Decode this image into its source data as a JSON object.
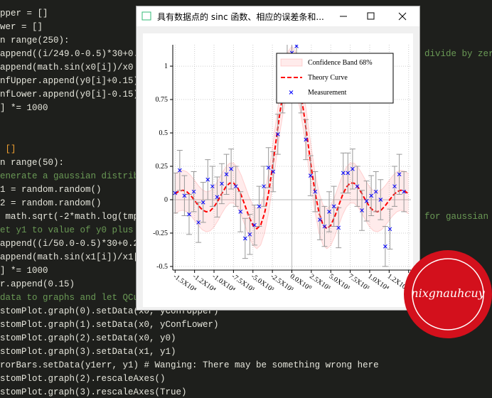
{
  "editor": {
    "lines": [
      "pper = []",
      "wer = []",
      "n range(250):",
      "append((i/249.0-0.5)*30+0.",
      "append(math.sin(x0[i])/x0",
      "nfUpper.append(y0[i]+0.15)",
      "nfLower.append(y0[i]-0.15)",
      "] *= 1000",
      " []",
      "n range(50):",
      "enerate a gaussian distrib",
      "1 = random.random()",
      "2 = random.random()",
      " math.sqrt(-2*math.log(tmp",
      "et y1 to value of y0 plus",
      "append((i/50.0-0.5)*30+0.2",
      "append(math.sin(x1[i])/x1[",
      "] *= 1000",
      "r.append(0.15)",
      "data to graphs and let QCu",
      "stomPlot.graph(0).setData(x0, yConfUpper)",
      "stomPlot.graph(1).setData(x0, yConfLower)",
      "stomPlot.graph(2).setData(x0, y0)",
      "stomPlot.graph(3).setData(x1, y1)",
      "rorBars.setData(y1err, y1) # Wanging: There may be something wrong here",
      "stomPlot.graph(2).rescaleAxes()",
      "stomPlot.graph(3).rescaleAxes(True)"
    ],
    "right_fragments": [
      "divide by zer",
      "for gaussian"
    ]
  },
  "window": {
    "title": "具有数据点的 sinc 函数、相应的误差条和..."
  },
  "watermark": "nixgnauhcuy",
  "chart_data": {
    "type": "line",
    "xlim": [
      -15300,
      15300
    ],
    "ylim": [
      -0.527,
      1.16
    ],
    "grid": true,
    "legend": "top-right",
    "xticks": [
      {
        "value": -15000,
        "label": "-1.5X10⁴"
      },
      {
        "value": -12500,
        "label": "-1.2X10⁴"
      },
      {
        "value": -10000,
        "label": "-1.0X10⁴"
      },
      {
        "value": -7500,
        "label": "-7.5X10³"
      },
      {
        "value": -5000,
        "label": "-5.0X10³"
      },
      {
        "value": -2500,
        "label": "-2.5X10³"
      },
      {
        "value": 0,
        "label": "0.0X10⁰"
      },
      {
        "value": 2500,
        "label": "2.5X10³"
      },
      {
        "value": 5000,
        "label": "5.0X10³"
      },
      {
        "value": 7500,
        "label": "7.5X10³"
      },
      {
        "value": 10000,
        "label": "1.0X10⁴"
      },
      {
        "value": 12500,
        "label": "1.2X10⁴"
      },
      {
        "value": 15000,
        "label": "1.5X10⁴"
      }
    ],
    "yticks": [
      -0.5,
      -0.25,
      0,
      0.25,
      0.5,
      0.75,
      1
    ],
    "curve_x": [
      -15000,
      -14500,
      -14000,
      -13500,
      -13000,
      -12500,
      -12000,
      -11500,
      -11000,
      -10500,
      -10000,
      -9500,
      -9000,
      -8500,
      -8000,
      -7500,
      -7000,
      -6500,
      -6000,
      -5500,
      -5000,
      -4500,
      -4000,
      -3500,
      -3000,
      -2500,
      -2000,
      -1500,
      -1000,
      -500,
      0,
      500,
      1000,
      1500,
      2000,
      2500,
      3000,
      3500,
      4000,
      4500,
      5000,
      5500,
      6000,
      6500,
      7000,
      7500,
      8000,
      8500,
      9000,
      9500,
      10000,
      10500,
      11000,
      11500,
      12000,
      12500,
      13000,
      13500,
      14000,
      14500,
      15000
    ],
    "series": [
      {
        "name": "Confidence Band 68%",
        "color": "#ff0000",
        "upper": [
          0.1934,
          0.2145,
          0.2208,
          0.2095,
          0.1823,
          0.1447,
          0.1053,
          0.0739,
          0.0591,
          0.0662,
          0.0956,
          0.1421,
          0.1958,
          0.2439,
          0.2737,
          0.2751,
          0.2439,
          0.1831,
          0.1034,
          0.0217,
          -0.0418,
          -0.0672,
          -0.0392,
          0.0498,
          0.197,
          0.3894,
          0.6046,
          0.815,
          0.9915,
          1.1089,
          1.15,
          1.1089,
          0.9915,
          0.815,
          0.6046,
          0.3894,
          0.197,
          0.0498,
          -0.0392,
          -0.0672,
          -0.0418,
          0.0217,
          0.1034,
          0.1831,
          0.2439,
          0.2751,
          0.2737,
          0.2439,
          0.1958,
          0.1421,
          0.0956,
          0.0662,
          0.0591,
          0.0739,
          0.1053,
          0.1447,
          0.1823,
          0.2095,
          0.2208,
          0.2145,
          0.1934
        ],
        "lower": [
          -0.1066,
          -0.0855,
          -0.0792,
          -0.0905,
          -0.1177,
          -0.1553,
          -0.1947,
          -0.2261,
          -0.2409,
          -0.2338,
          -0.2044,
          -0.1579,
          -0.1042,
          -0.0561,
          -0.0263,
          -0.0249,
          -0.0561,
          -0.1169,
          -0.1966,
          -0.2783,
          -0.3418,
          -0.3672,
          -0.3392,
          -0.2502,
          -0.103,
          0.0894,
          0.3046,
          0.515,
          0.6915,
          0.8089,
          0.85,
          0.8089,
          0.6915,
          0.515,
          0.3046,
          0.0894,
          -0.103,
          -0.2502,
          -0.3392,
          -0.3672,
          -0.3418,
          -0.2783,
          -0.1966,
          -0.1169,
          -0.0561,
          -0.0249,
          -0.0263,
          -0.0561,
          -0.1042,
          -0.1579,
          -0.2044,
          -0.2338,
          -0.2409,
          -0.2261,
          -0.1947,
          -0.1553,
          -0.1177,
          -0.0905,
          -0.0792,
          -0.0855,
          -0.1066
        ]
      },
      {
        "name": "Theory Curve",
        "color": "#ff0000",
        "values": [
          0.0434,
          0.0645,
          0.0708,
          0.0595,
          0.0323,
          -0.0053,
          -0.0447,
          -0.0761,
          -0.0909,
          -0.0838,
          -0.0544,
          -0.0079,
          0.0458,
          0.0939,
          0.1237,
          0.1251,
          0.0939,
          0.0331,
          -0.0466,
          -0.1283,
          -0.1918,
          -0.2172,
          -0.1892,
          -0.1002,
          0.047,
          0.2394,
          0.4546,
          0.665,
          0.8415,
          0.9589,
          1,
          0.9589,
          0.8415,
          0.665,
          0.4546,
          0.2394,
          0.047,
          -0.1002,
          -0.1892,
          -0.2172,
          -0.1918,
          -0.1283,
          -0.0466,
          0.0331,
          0.0939,
          0.1251,
          0.1237,
          0.0939,
          0.0458,
          -0.0079,
          -0.0544,
          -0.0838,
          -0.0909,
          -0.0761,
          -0.0447,
          -0.0053,
          0.0323,
          0.0595,
          0.0708,
          0.0645,
          0.0434
        ]
      },
      {
        "name": "Measurement",
        "color": "#0000ff",
        "error_color": "#999999",
        "x": [
          -15000,
          -14400,
          -13800,
          -13200,
          -12600,
          -12000,
          -11400,
          -10800,
          -10200,
          -9600,
          -9000,
          -8400,
          -7800,
          -7200,
          -6600,
          -6000,
          -5400,
          -4800,
          -4200,
          -3600,
          -3000,
          -2400,
          -1800,
          -1200,
          -600,
          0,
          600,
          1200,
          1800,
          2400,
          3000,
          3600,
          4200,
          4800,
          5400,
          6000,
          6600,
          7200,
          7800,
          8400,
          9000,
          9600,
          10200,
          10800,
          11400,
          12000,
          12600,
          13200,
          13800,
          14400
        ],
        "values": [
          0.05,
          0.22,
          0.03,
          -0.11,
          0.06,
          -0.17,
          -0.02,
          0.15,
          0.1,
          0.02,
          0.12,
          0.19,
          0.23,
          0.1,
          -0.09,
          -0.29,
          -0.26,
          -0.19,
          -0.05,
          0.1,
          0.24,
          0.21,
          0.49,
          0.8,
          1.04,
          1.1,
          1.15,
          0.8,
          0.45,
          0.18,
          0.06,
          -0.15,
          -0.2,
          -0.09,
          -0.05,
          -0.21,
          0.2,
          0.2,
          0.23,
          0.1,
          -0.08,
          -0.01,
          0.03,
          0.06,
          0,
          -0.35,
          -0.22,
          0.1,
          0.19,
          0.06
        ],
        "errors": [
          0.15,
          0.15,
          0.15,
          0.15,
          0.15,
          0.15,
          0.15,
          0.15,
          0.15,
          0.15,
          0.15,
          0.15,
          0.15,
          0.15,
          0.15,
          0.15,
          0.15,
          0.15,
          0.15,
          0.15,
          0.15,
          0.15,
          0.15,
          0.15,
          0.15,
          0.15,
          0.15,
          0.15,
          0.15,
          0.15,
          0.15,
          0.15,
          0.15,
          0.15,
          0.15,
          0.15,
          0.15,
          0.15,
          0.15,
          0.15,
          0.15,
          0.15,
          0.15,
          0.15,
          0.15,
          0.15,
          0.15,
          0.15,
          0.15,
          0.15
        ]
      }
    ]
  }
}
